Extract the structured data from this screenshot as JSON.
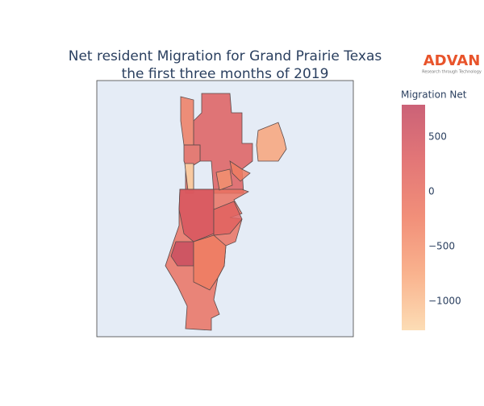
{
  "chart_data": {
    "type": "choropleth",
    "title": [
      "Net resident Migration for Grand Prairie Texas",
      "the first three months of 2019"
    ],
    "colorbar": {
      "title": "Migration Net",
      "range": [
        -1265,
        795
      ],
      "ticks": [
        {
          "value": 500,
          "label": "500"
        },
        0,
        {
          "value": -500,
          "label": "−500"
        },
        {
          "value": -1000,
          "label": "−1000"
        }
      ],
      "colors": [
        "#fcd7a8",
        "#f8a57a",
        "#ef7c62",
        "#de5f5f",
        "#c2465f"
      ]
    },
    "logo": {
      "name": "ADVAN",
      "tagline": "Research through Technology"
    }
  }
}
